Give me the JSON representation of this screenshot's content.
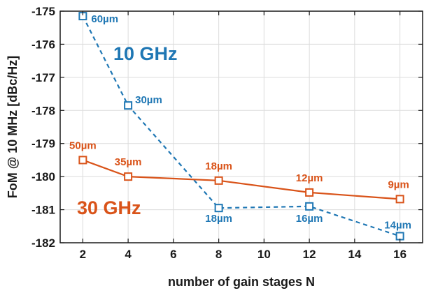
{
  "chart_data": {
    "type": "line",
    "xlabel": "number of gain stages N",
    "ylabel": "FoM @ 10 MHz [dBc/Hz]",
    "xlim": [
      1,
      17
    ],
    "ylim": [
      -182,
      -175
    ],
    "xticks": [
      2,
      4,
      6,
      8,
      10,
      12,
      14,
      16
    ],
    "yticks": [
      -182,
      -181,
      -180,
      -179,
      -178,
      -177,
      -176,
      -175
    ],
    "grid": true,
    "legend": "none",
    "series": [
      {
        "name": "10 GHz",
        "color": "#1f77b4",
        "line_style": "dashed",
        "marker": "square",
        "x": [
          2,
          4,
          8,
          12,
          16
        ],
        "y": [
          -175.15,
          -177.85,
          -180.95,
          -180.9,
          -181.8
        ],
        "labels": [
          "60µm",
          "30µm",
          "18µm",
          "16µm",
          "14µm"
        ]
      },
      {
        "name": "30 GHz",
        "color": "#d95319",
        "line_style": "solid",
        "marker": "square",
        "x": [
          2,
          4,
          8,
          12,
          16
        ],
        "y": [
          -179.5,
          -180.0,
          -180.12,
          -180.48,
          -180.68
        ],
        "labels": [
          "50µm",
          "35µm",
          "18µm",
          "12µm",
          "9µm"
        ]
      }
    ]
  }
}
